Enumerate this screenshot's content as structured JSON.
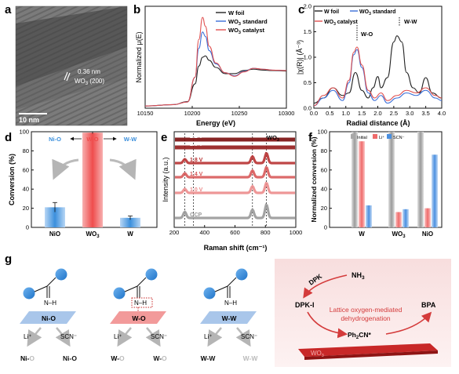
{
  "panels": {
    "a": {
      "letter": "a",
      "lattice_text": "0.36 nm",
      "lattice_plane": "WO",
      "lattice_sub": "3",
      "lattice_hkl": " (200)",
      "scale_bar_label": "10 nm"
    },
    "b": {
      "letter": "b",
      "legend": [
        {
          "pre": "W foil",
          "sub": "",
          "post": ""
        },
        {
          "pre": "WO",
          "sub": "3",
          "post": " standard"
        },
        {
          "pre": "WO",
          "sub": "3",
          "post": " catalyst"
        }
      ]
    },
    "c": {
      "letter": "c",
      "legend": [
        {
          "pre": "W foil",
          "sub": "",
          "post": ""
        },
        {
          "pre": "WO",
          "sub": "3",
          "post": " standard"
        },
        {
          "pre": "WO",
          "sub": "3",
          "post": " catalyst"
        }
      ],
      "annotations": [
        "W-O",
        "W-W"
      ]
    },
    "d": {
      "letter": "d",
      "annotations": [
        "Ni-O",
        "W-O",
        "W-W"
      ],
      "bar_colors": [
        "#3b8fdc",
        "#ef4c4c",
        "#3b8fdc"
      ]
    },
    "e": {
      "letter": "e",
      "curve_labels": [
        "2.2 V",
        "2.0 V",
        "1.8 V",
        "1.4 V",
        "1.0 V",
        "OCP"
      ],
      "species_pre": "WO",
      "species_sub": "3"
    },
    "f": {
      "letter": "f",
      "legend": [
        "Initial",
        "Li⁺",
        "SCN⁻"
      ]
    },
    "g": {
      "letter": "g",
      "molecule_label": "N–H",
      "site_labels": [
        "Ni-O",
        "W-O",
        "W-W"
      ],
      "reagent_li": "Li⁺",
      "reagent_scn": "SCN⁻",
      "products": [
        [
          "Ni-O",
          "Ni-O"
        ],
        [
          "W-O",
          "W-O"
        ],
        [
          "W-W",
          "W-W"
        ]
      ]
    },
    "h": {
      "letter": "h",
      "dpk": "DPK",
      "nh3_pre": "NH",
      "nh3_sub": "3",
      "dpki": "DPK-I",
      "bpa": "BPA",
      "mech_line1": "Lattice oxygen-mediated",
      "mech_line2": "dehydrogenation",
      "inter_pre": "Ph",
      "inter_sub": "2",
      "inter_post": "CN*",
      "slab_pre": "WO",
      "slab_sub": "3"
    }
  },
  "chart_data": [
    {
      "panel": "b",
      "type": "line",
      "xlabel": "Energy (eV)",
      "ylabel": "Normalized μ(E)",
      "xlim": [
        10150,
        10300
      ],
      "xticks": [
        10150,
        10200,
        10250,
        10300
      ],
      "series": [
        {
          "name": "W foil",
          "color": "#222222",
          "x": [
            10150,
            10180,
            10195,
            10203,
            10207,
            10211,
            10214,
            10218,
            10225,
            10235,
            10245,
            10255,
            10265,
            10275,
            10285,
            10300
          ],
          "y": [
            0.05,
            0.08,
            0.15,
            0.55,
            0.95,
            1.15,
            1.18,
            1.08,
            0.92,
            0.78,
            0.78,
            0.85,
            0.88,
            0.86,
            0.85,
            0.84
          ]
        },
        {
          "name": "WO3 standard",
          "color": "#3a6fd8",
          "x": [
            10150,
            10180,
            10195,
            10203,
            10207,
            10211,
            10214,
            10218,
            10225,
            10235,
            10245,
            10255,
            10265,
            10275,
            10285,
            10300
          ],
          "y": [
            0.05,
            0.08,
            0.14,
            0.7,
            1.35,
            1.72,
            1.62,
            1.3,
            1.0,
            0.8,
            0.73,
            0.83,
            0.9,
            0.88,
            0.86,
            0.85
          ]
        },
        {
          "name": "WO3 catalyst",
          "color": "#e05050",
          "x": [
            10150,
            10180,
            10195,
            10203,
            10207,
            10211,
            10214,
            10218,
            10225,
            10235,
            10245,
            10255,
            10265,
            10275,
            10285,
            10300
          ],
          "y": [
            0.05,
            0.08,
            0.14,
            0.7,
            1.55,
            2.05,
            1.85,
            1.4,
            1.02,
            0.8,
            0.72,
            0.82,
            0.9,
            0.88,
            0.86,
            0.85
          ]
        }
      ]
    },
    {
      "panel": "c",
      "type": "line",
      "xlabel": "Radial distance (Å)",
      "ylabel": "|χ(R)| (Å⁻³)",
      "xlim": [
        0,
        4.0
      ],
      "ylim": [
        0,
        2.0
      ],
      "xticks": [
        0.0,
        0.5,
        1.0,
        1.5,
        2.0,
        2.5,
        3.0,
        3.5,
        4.0
      ],
      "yticks": [
        0.0,
        0.5,
        1.0,
        1.5,
        2.0
      ],
      "series": [
        {
          "name": "W foil",
          "color": "#222222",
          "x": [
            0,
            0.3,
            0.6,
            0.9,
            1.1,
            1.3,
            1.5,
            1.7,
            1.85,
            2.0,
            2.1,
            2.3,
            2.5,
            2.6,
            2.75,
            2.9,
            3.1,
            3.3,
            3.5,
            3.7,
            4.0
          ],
          "y": [
            0.1,
            0.2,
            0.4,
            0.25,
            0.3,
            0.7,
            0.35,
            0.2,
            0.4,
            0.62,
            0.4,
            0.6,
            1.3,
            1.42,
            1.3,
            0.7,
            0.4,
            0.3,
            0.6,
            0.3,
            0.2
          ]
        },
        {
          "name": "WO3 standard",
          "color": "#3a6fd8",
          "x": [
            0,
            0.3,
            0.6,
            0.9,
            1.1,
            1.25,
            1.35,
            1.5,
            1.7,
            1.9,
            2.1,
            2.3,
            2.6,
            2.9,
            3.2,
            3.5,
            3.8,
            4.0
          ],
          "y": [
            0.05,
            0.2,
            0.35,
            0.15,
            0.5,
            1.05,
            1.15,
            0.8,
            0.3,
            0.15,
            0.25,
            0.1,
            0.2,
            0.3,
            0.25,
            0.35,
            0.2,
            0.15
          ]
        },
        {
          "name": "WO3 catalyst",
          "color": "#e05050",
          "x": [
            0,
            0.3,
            0.6,
            0.9,
            1.1,
            1.25,
            1.35,
            1.5,
            1.7,
            1.9,
            2.1,
            2.3,
            2.6,
            2.9,
            3.2,
            3.5,
            3.8,
            4.0
          ],
          "y": [
            0.05,
            0.25,
            0.4,
            0.2,
            0.55,
            1.1,
            1.2,
            0.85,
            0.35,
            0.2,
            0.3,
            0.15,
            0.25,
            0.35,
            0.3,
            0.4,
            0.25,
            0.2
          ]
        }
      ]
    },
    {
      "panel": "d",
      "type": "bar",
      "ylabel": "Conversion (%)",
      "ylim": [
        0,
        100
      ],
      "yticks": [
        0,
        20,
        40,
        60,
        80,
        100
      ],
      "categories": [
        "NiO",
        "WO3",
        "W"
      ],
      "category_labels": [
        {
          "pre": "NiO",
          "sub": ""
        },
        {
          "pre": "WO",
          "sub": "3"
        },
        {
          "pre": "W",
          "sub": ""
        }
      ],
      "values": [
        21,
        99,
        10
      ],
      "errors": [
        5,
        1,
        2
      ]
    },
    {
      "panel": "e",
      "type": "line",
      "xlabel": "Raman shift (cm⁻¹)",
      "ylabel": "Intensity (a.u.)",
      "xlim": [
        200,
        1000
      ],
      "xticks": [
        200,
        400,
        600,
        800,
        1000
      ],
      "reference_lines": [
        270,
        327,
        715,
        807
      ],
      "series": [
        {
          "name": "2.2 V",
          "color": "#7a0c0c",
          "peaks": []
        },
        {
          "name": "2.0 V",
          "color": "#941b1b",
          "peaks": []
        },
        {
          "name": "1.8 V",
          "color": "#b83232",
          "peaks": [
            [
              270,
              0.35
            ],
            [
              715,
              0.6
            ],
            [
              807,
              0.9
            ]
          ]
        },
        {
          "name": "1.4 V",
          "color": "#d85a5a",
          "peaks": [
            [
              270,
              0.35
            ],
            [
              715,
              0.6
            ],
            [
              807,
              0.9
            ]
          ]
        },
        {
          "name": "1.0 V",
          "color": "#ec8c8c",
          "peaks": [
            [
              270,
              0.35
            ],
            [
              715,
              0.6
            ],
            [
              807,
              0.9
            ]
          ]
        },
        {
          "name": "OCP",
          "color": "#999999",
          "peaks": [
            [
              270,
              0.55
            ],
            [
              715,
              0.75
            ],
            [
              807,
              1.2
            ]
          ]
        }
      ]
    },
    {
      "panel": "f",
      "type": "bar",
      "ylabel": "Normalized conversion (%)",
      "ylim": [
        0,
        100
      ],
      "yticks": [
        0,
        20,
        40,
        60,
        80,
        100
      ],
      "categories": [
        "W",
        "WO3",
        "NiO"
      ],
      "category_labels": [
        {
          "pre": "W",
          "sub": ""
        },
        {
          "pre": "WO",
          "sub": "3"
        },
        {
          "pre": "NiO",
          "sub": ""
        }
      ],
      "series": [
        {
          "name": "Initial",
          "color": "#a8a8a8",
          "values": [
            100,
            100,
            100
          ]
        },
        {
          "name": "Li⁺",
          "color": "#ef6b6b",
          "values": [
            90,
            16,
            20
          ]
        },
        {
          "name": "SCN⁻",
          "color": "#4a8fe0",
          "values": [
            23,
            19,
            76
          ]
        }
      ]
    }
  ]
}
